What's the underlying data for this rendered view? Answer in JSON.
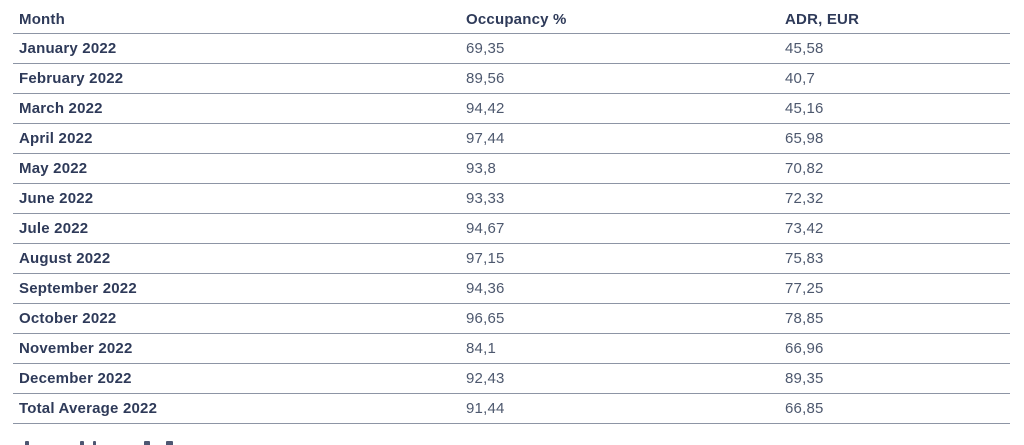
{
  "table": {
    "columns": [
      "Month",
      "Occupancy %",
      "ADR, EUR"
    ],
    "rows": [
      {
        "month": "January 2022",
        "occupancy": "69,35",
        "adr": "45,58"
      },
      {
        "month": "February 2022",
        "occupancy": "89,56",
        "adr": "40,7"
      },
      {
        "month": "March 2022",
        "occupancy": "94,42",
        "adr": "45,16"
      },
      {
        "month": "April 2022",
        "occupancy": "97,44",
        "adr": "65,98"
      },
      {
        "month": "May 2022",
        "occupancy": "93,8",
        "adr": "70,82"
      },
      {
        "month": "June 2022",
        "occupancy": "93,33",
        "adr": "72,32"
      },
      {
        "month": "Jule 2022",
        "occupancy": "94,67",
        "adr": "73,42"
      },
      {
        "month": "August 2022",
        "occupancy": "97,15",
        "adr": "75,83"
      },
      {
        "month": "September 2022",
        "occupancy": "94,36",
        "adr": "77,25"
      },
      {
        "month": "October 2022",
        "occupancy": "96,65",
        "adr": "78,85"
      },
      {
        "month": "November 2022",
        "occupancy": "84,1",
        "adr": "66,96"
      },
      {
        "month": "December 2022",
        "occupancy": "92,43",
        "adr": "89,35"
      },
      {
        "month": "Total Average 2022",
        "occupancy": "91,44",
        "adr": "66,85"
      }
    ]
  },
  "colors": {
    "heading_text": "#2e3a59",
    "value_text": "#4d586e",
    "divider": "#8d95a5",
    "background": "#ffffff"
  }
}
